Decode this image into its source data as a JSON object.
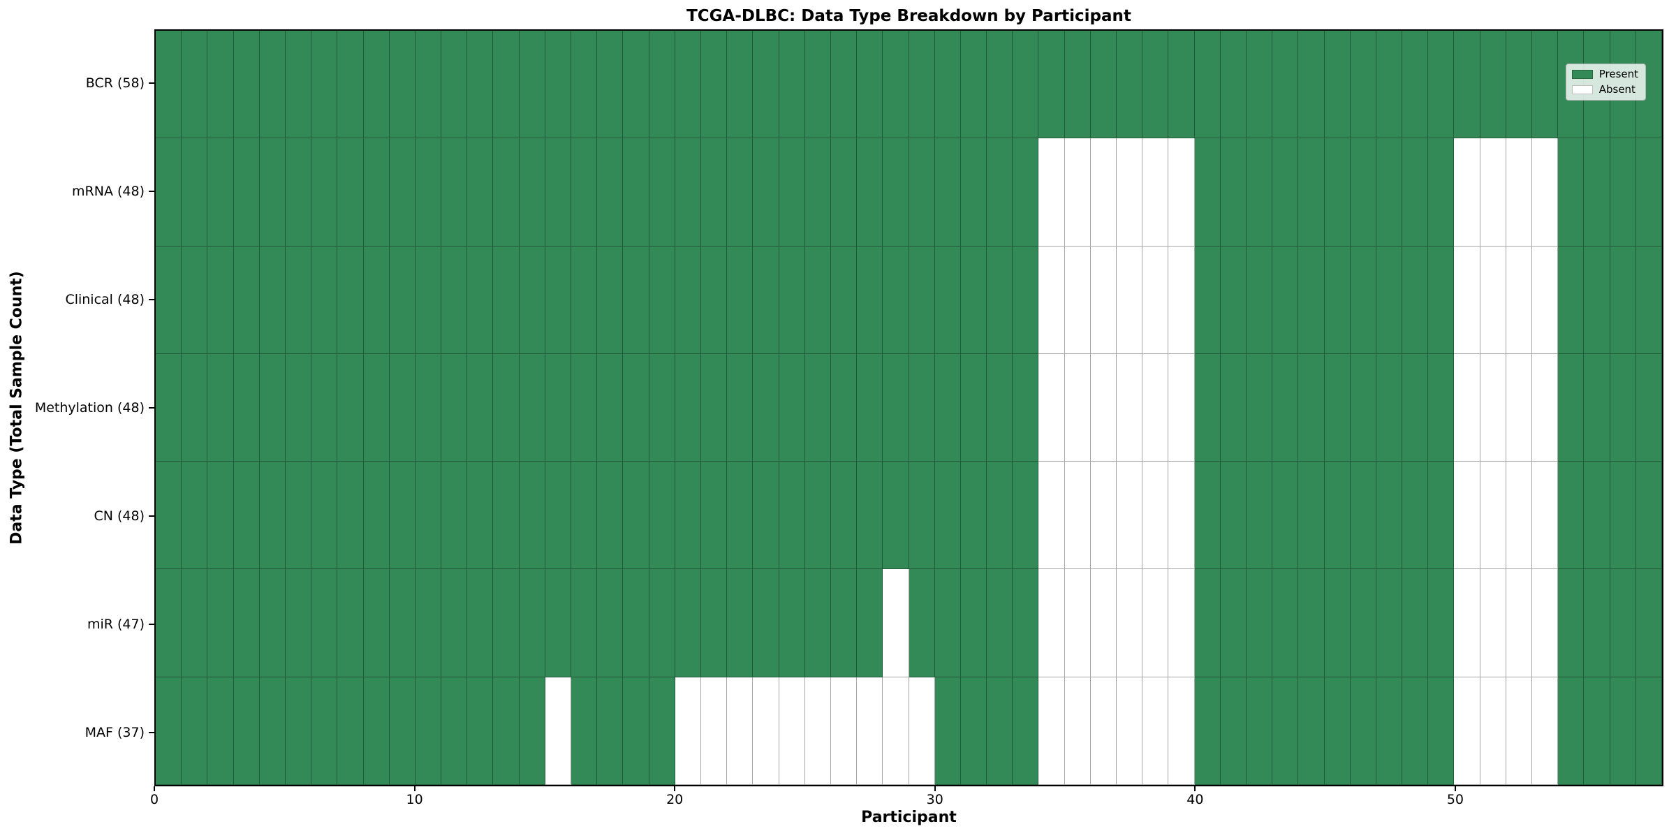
{
  "chart_data": {
    "type": "heatmap",
    "title": "TCGA-DLBC: Data Type Breakdown by Participant",
    "xlabel": "Participant",
    "ylabel": "Data Type (Total Sample Count)",
    "x_ticks": [
      0,
      10,
      20,
      30,
      40,
      50
    ],
    "x_range": [
      0,
      58
    ],
    "n_participants": 58,
    "grid": true,
    "legend_position": "upper right",
    "legend": [
      {
        "label": "Present",
        "value": "present"
      },
      {
        "label": "Absent",
        "value": "absent"
      }
    ],
    "colors": {
      "present": "#348a56",
      "absent": "#ffffff",
      "grid_line": "rgba(0,0,0,0.35)",
      "spine": "#000000"
    },
    "rows": [
      {
        "label": "BCR (58)",
        "data_type": "BCR",
        "total_samples": 58,
        "absent_participants": []
      },
      {
        "label": "mRNA (48)",
        "data_type": "mRNA",
        "total_samples": 48,
        "absent_participants": [
          34,
          35,
          36,
          37,
          38,
          39,
          50,
          51,
          52,
          53
        ]
      },
      {
        "label": "Clinical (48)",
        "data_type": "Clinical",
        "total_samples": 48,
        "absent_participants": [
          34,
          35,
          36,
          37,
          38,
          39,
          50,
          51,
          52,
          53
        ]
      },
      {
        "label": "Methylation (48)",
        "data_type": "Methylation",
        "total_samples": 48,
        "absent_participants": [
          34,
          35,
          36,
          37,
          38,
          39,
          50,
          51,
          52,
          53
        ]
      },
      {
        "label": "CN (48)",
        "data_type": "CN",
        "total_samples": 48,
        "absent_participants": [
          34,
          35,
          36,
          37,
          38,
          39,
          50,
          51,
          52,
          53
        ]
      },
      {
        "label": "miR (47)",
        "data_type": "miR",
        "total_samples": 47,
        "absent_participants": [
          28,
          34,
          35,
          36,
          37,
          38,
          39,
          50,
          51,
          52,
          53
        ]
      },
      {
        "label": "MAF (37)",
        "data_type": "MAF",
        "total_samples": 37,
        "absent_participants": [
          15,
          20,
          21,
          22,
          23,
          24,
          25,
          26,
          27,
          28,
          29,
          34,
          35,
          36,
          37,
          38,
          39,
          50,
          51,
          52,
          53
        ]
      }
    ]
  }
}
